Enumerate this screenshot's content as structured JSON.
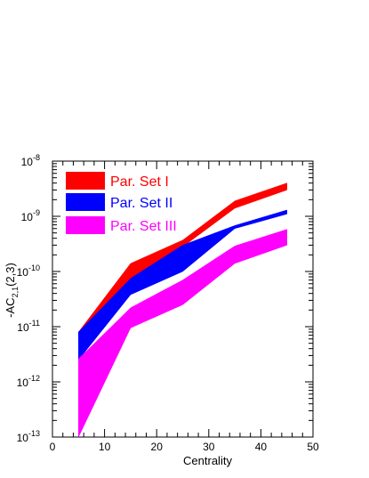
{
  "chart_data": {
    "type": "area",
    "title": "",
    "xlabel": "Centrality",
    "ylabel": {
      "base": "-AC",
      "sub": "2,1",
      "suffix": "(2,3)"
    },
    "xlim": [
      0,
      50
    ],
    "ylim": [
      1e-13,
      1e-08
    ],
    "yscale": "log",
    "x_ticks": [
      0,
      10,
      20,
      30,
      40,
      50
    ],
    "x_tick_labels": [
      "0",
      "10",
      "20",
      "30",
      "40",
      "50"
    ],
    "y_ticks": [
      1e-13,
      1e-12,
      1e-11,
      1e-10,
      1e-09,
      1e-08
    ],
    "y_tick_labels": [
      {
        "base": "10",
        "exp": "-13"
      },
      {
        "base": "10",
        "exp": "-12"
      },
      {
        "base": "10",
        "exp": "-11"
      },
      {
        "base": "10",
        "exp": "-10"
      },
      {
        "base": "10",
        "exp": "-9"
      },
      {
        "base": "10",
        "exp": "-8"
      }
    ],
    "legend_position": "top-left",
    "grid": false,
    "x": [
      5,
      15,
      25,
      35,
      45
    ],
    "series": [
      {
        "name": "Par. Set I",
        "color": "#ff0000",
        "lower": [
          6e-12,
          7e-11,
          2.8e-10,
          1.4e-09,
          3e-09
        ],
        "upper": [
          8e-12,
          1.4e-10,
          3.7e-10,
          1.9e-09,
          4e-09
        ]
      },
      {
        "name": "Par. Set II",
        "color": "#0000ff",
        "lower": [
          2.5e-12,
          3.8e-11,
          1e-10,
          6e-10,
          1.1e-09
        ],
        "upper": [
          8e-12,
          7.5e-11,
          3e-10,
          6.8e-10,
          1.3e-09
        ]
      },
      {
        "name": "Par. Set III",
        "color": "#ff00ff",
        "lower": [
          1e-13,
          9.5e-12,
          2.5e-11,
          1.4e-10,
          3e-10
        ],
        "upper": [
          2.6e-12,
          2.2e-11,
          7e-11,
          2.9e-10,
          5.8e-10
        ]
      }
    ]
  }
}
